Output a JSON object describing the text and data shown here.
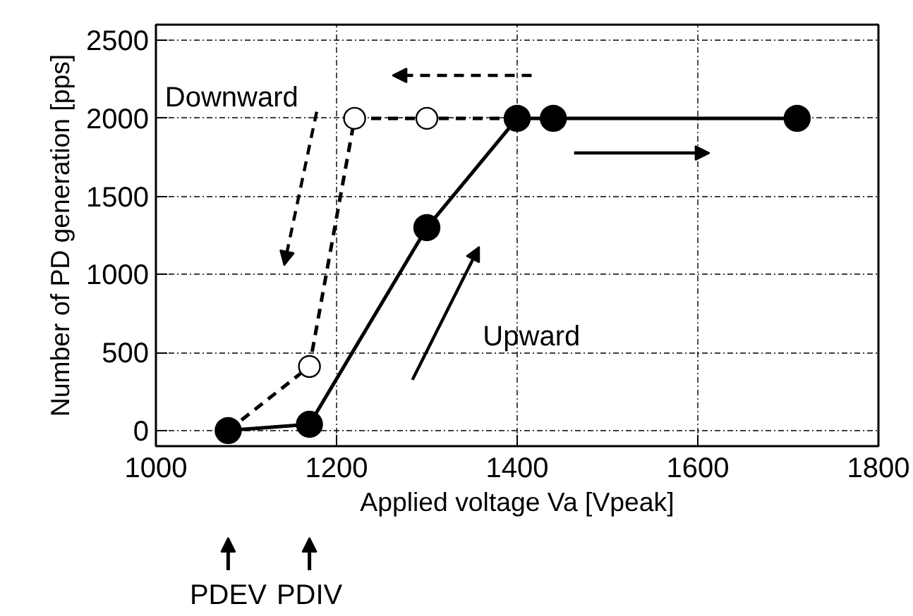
{
  "chart_data": {
    "type": "line",
    "xlabel": "Applied voltage Va [Vpeak]",
    "ylabel": "Number of PD generation [pps]",
    "xlim": [
      1000,
      1800
    ],
    "xticks": [
      1000,
      1200,
      1400,
      1600,
      1800
    ],
    "ylim": [
      -100,
      2600
    ],
    "yticks": [
      0,
      500,
      1000,
      1500,
      2000,
      2500
    ],
    "grid": true,
    "series": [
      {
        "color": "#000000",
        "line_style": "dashed",
        "marker": "circle",
        "x": [
          1080,
          1170,
          1220,
          1300,
          1400
        ],
        "values": [
          0,
          410,
          2000,
          2000,
          2000
        ]
      },
      {
        "color": "#000000",
        "line_style": "solid",
        "marker": "circle",
        "x": [
          1080,
          1170,
          1300,
          1400,
          1440,
          1710
        ],
        "values": [
          0,
          40,
          1300,
          2000,
          2000,
          2000
        ]
      }
    ],
    "annotations": [
      "Downward",
      "Upward",
      "PDEV",
      "PDIV"
    ]
  }
}
